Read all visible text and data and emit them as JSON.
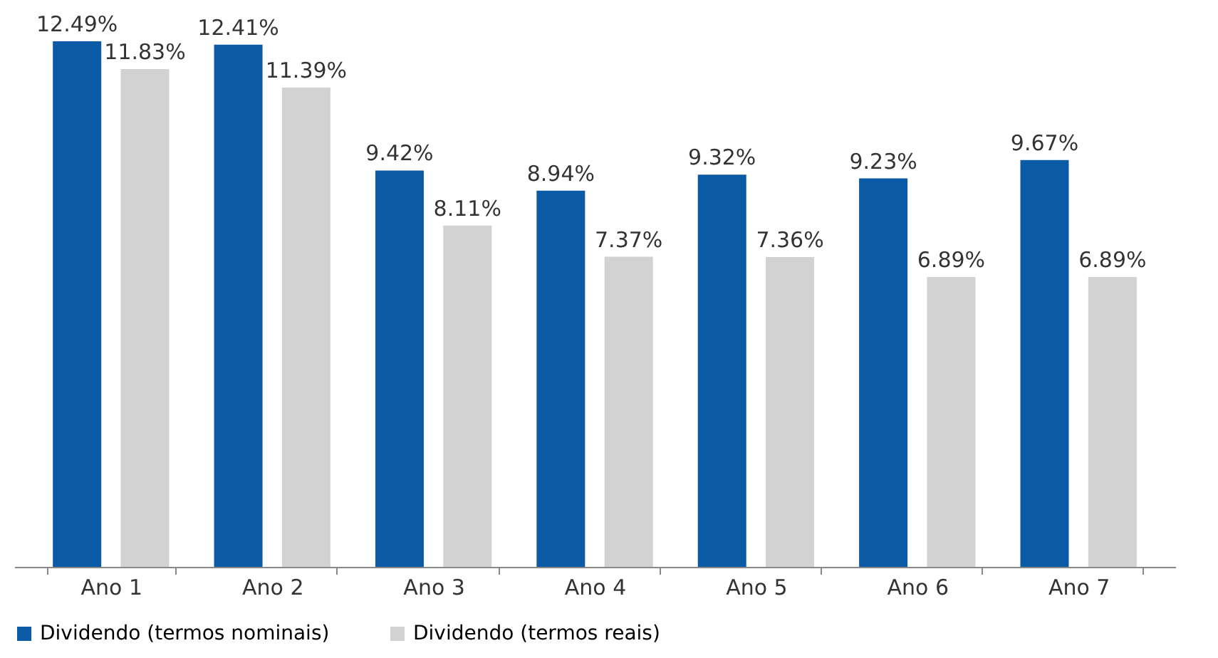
{
  "chart_data": {
    "type": "bar",
    "categories": [
      "Ano 1",
      "Ano 2",
      "Ano 3",
      "Ano 4",
      "Ano 5",
      "Ano 6",
      "Ano 7"
    ],
    "series": [
      {
        "name": "Dividendo (termos nominais)",
        "color": "#0b5aa6",
        "values": [
          12.49,
          12.41,
          9.42,
          8.94,
          9.32,
          9.23,
          9.67
        ],
        "value_labels": [
          "12.49%",
          "12.41%",
          "9.42%",
          "8.94%",
          "9.32%",
          "9.23%",
          "9.67%"
        ]
      },
      {
        "name": "Dividendo (termos reais)",
        "color": "#d2d2d2",
        "values": [
          11.83,
          11.39,
          8.11,
          7.37,
          7.36,
          6.89,
          6.89
        ],
        "value_labels": [
          "11.83%",
          "11.39%",
          "8.11%",
          "7.37%",
          "7.36%",
          "6.89%",
          "6.89%"
        ]
      }
    ],
    "tick_labels": "x",
    "grid": false,
    "legend": "bottom"
  }
}
